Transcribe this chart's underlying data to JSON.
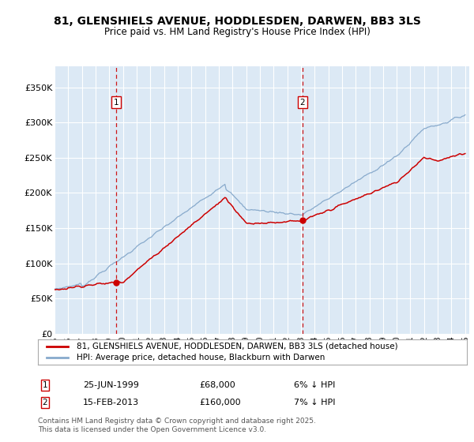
{
  "title": "81, GLENSHIELS AVENUE, HODDLESDEN, DARWEN, BB3 3LS",
  "subtitle": "Price paid vs. HM Land Registry's House Price Index (HPI)",
  "title_fontsize": 10,
  "subtitle_fontsize": 8.5,
  "background_color": "#dce9f5",
  "ylim": [
    0,
    380000
  ],
  "yticks": [
    0,
    50000,
    100000,
    150000,
    200000,
    250000,
    300000,
    350000
  ],
  "ytick_labels": [
    "£0",
    "£50K",
    "£100K",
    "£150K",
    "£200K",
    "£250K",
    "£300K",
    "£350K"
  ],
  "legend_label_house": "81, GLENSHIELS AVENUE, HODDLESDEN, DARWEN, BB3 3LS (detached house)",
  "legend_label_hpi": "HPI: Average price, detached house, Blackburn with Darwen",
  "house_color": "#cc0000",
  "hpi_color": "#88aacc",
  "marker1_date": "25-JUN-1999",
  "marker1_price": "£68,000",
  "marker1_pct": "6% ↓ HPI",
  "marker2_date": "15-FEB-2013",
  "marker2_price": "£160,000",
  "marker2_pct": "7% ↓ HPI",
  "footnote_line1": "Contains HM Land Registry data © Crown copyright and database right 2025.",
  "footnote_line2": "This data is licensed under the Open Government Licence v3.0.",
  "t_marker1": 1999.5,
  "t_marker2": 2013.1
}
